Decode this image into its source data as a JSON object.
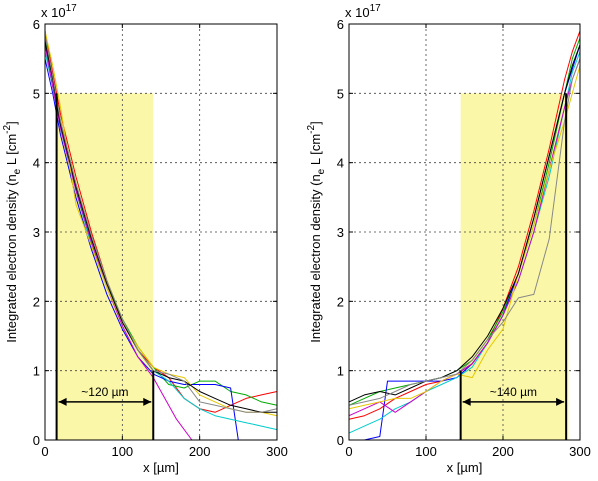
{
  "chart_data": [
    {
      "type": "line",
      "xlabel": "x [µm]",
      "ylabel": "Integrated electron density (n_e L [cm^-2]",
      "ylabel_parts": [
        "Integrated electron density (n",
        "e",
        " L [cm",
        "-2",
        "]"
      ],
      "exponent_label": "x 10",
      "exponent_power": "17",
      "xlim": [
        0,
        300
      ],
      "ylim": [
        0,
        6
      ],
      "xticks": [
        "0",
        "100",
        "200",
        "300"
      ],
      "yticks": [
        "0",
        "1",
        "2",
        "3",
        "4",
        "5",
        "6"
      ],
      "grid": true,
      "highlight": {
        "x": [
          15,
          140
        ],
        "y": [
          0,
          5
        ],
        "color": "#fbf7a8"
      },
      "markers": [
        {
          "x": 15,
          "y0": 0,
          "y1": 5
        },
        {
          "x": 140,
          "y0": 0,
          "y1": 1
        }
      ],
      "annotation": {
        "text": "~120 µm",
        "x_from": 15,
        "x_to": 140,
        "y": 0.55
      },
      "series": [
        {
          "color": "#ff0000",
          "x": [
            0,
            10,
            20,
            40,
            60,
            80,
            100,
            120,
            140,
            160,
            180,
            200,
            220,
            240,
            260,
            280,
            300
          ],
          "y": [
            5.9,
            5.3,
            4.7,
            3.8,
            3.0,
            2.3,
            1.7,
            1.3,
            1.05,
            0.9,
            0.6,
            0.45,
            0.4,
            0.5,
            0.6,
            0.65,
            0.7
          ]
        },
        {
          "color": "#00aa00",
          "x": [
            0,
            10,
            20,
            40,
            60,
            80,
            100,
            120,
            140,
            160,
            180,
            200,
            220,
            240,
            260,
            280,
            300
          ],
          "y": [
            5.8,
            5.2,
            4.6,
            3.7,
            2.9,
            2.25,
            1.75,
            1.35,
            1.05,
            0.8,
            0.75,
            0.85,
            0.85,
            0.7,
            0.65,
            0.55,
            0.5
          ]
        },
        {
          "color": "#0000ff",
          "x": [
            0,
            10,
            20,
            40,
            60,
            80,
            100,
            120,
            140,
            160,
            180,
            200,
            220,
            240,
            250,
            270,
            300
          ],
          "y": [
            5.5,
            5.0,
            4.4,
            3.5,
            2.75,
            2.1,
            1.6,
            1.2,
            0.95,
            0.85,
            0.8,
            0.8,
            0.8,
            0.75,
            0.0,
            0.0,
            0.0
          ]
        },
        {
          "color": "#00cccc",
          "x": [
            0,
            10,
            20,
            40,
            60,
            80,
            100,
            120,
            140,
            160,
            180,
            200,
            220,
            240,
            260,
            280,
            300
          ],
          "y": [
            5.6,
            5.1,
            4.5,
            3.6,
            2.8,
            2.2,
            1.7,
            1.3,
            1.0,
            0.85,
            0.6,
            0.45,
            0.35,
            0.3,
            0.25,
            0.2,
            0.15
          ]
        },
        {
          "color": "#cc00cc",
          "x": [
            0,
            10,
            20,
            40,
            60,
            80,
            100,
            120,
            140,
            150,
            170,
            190,
            210,
            230,
            250,
            270,
            300
          ],
          "y": [
            5.7,
            5.1,
            4.5,
            3.6,
            2.85,
            2.2,
            1.65,
            1.2,
            0.9,
            0.7,
            0.3,
            0.0,
            0.0,
            0.0,
            0.0,
            0.0,
            0.0
          ]
        },
        {
          "color": "#e6c800",
          "x": [
            0,
            10,
            20,
            40,
            60,
            80,
            100,
            120,
            140,
            160,
            180,
            200,
            220,
            240,
            260,
            280,
            300
          ],
          "y": [
            5.9,
            5.4,
            4.8,
            3.4,
            2.8,
            2.2,
            1.7,
            1.35,
            1.05,
            0.95,
            0.9,
            0.65,
            0.55,
            0.45,
            0.4,
            0.4,
            0.35
          ]
        },
        {
          "color": "#000000",
          "x": [
            0,
            10,
            20,
            40,
            60,
            80,
            100,
            120,
            140,
            160,
            180,
            200,
            220,
            240,
            260,
            280,
            300
          ],
          "y": [
            5.75,
            5.2,
            4.55,
            3.65,
            2.9,
            2.25,
            1.7,
            1.3,
            1.0,
            0.9,
            0.85,
            0.7,
            0.6,
            0.5,
            0.45,
            0.4,
            0.4
          ]
        },
        {
          "color": "#888888",
          "x": [
            0,
            10,
            20,
            40,
            60,
            80,
            100,
            120,
            140,
            160,
            180,
            200,
            220,
            240,
            260,
            280,
            300
          ],
          "y": [
            5.85,
            5.25,
            4.6,
            3.7,
            2.95,
            2.3,
            1.75,
            1.3,
            1.0,
            0.95,
            0.85,
            0.55,
            0.5,
            0.45,
            0.4,
            0.4,
            0.45
          ]
        }
      ]
    },
    {
      "type": "line",
      "xlabel": "x [µm]",
      "ylabel": "Integrated electron density (n_e L [cm^-2]",
      "ylabel_parts": [
        "Integrated electron density (n",
        "e",
        " L [cm",
        "-2",
        "]"
      ],
      "exponent_label": "x 10",
      "exponent_power": "17",
      "xlim": [
        0,
        300
      ],
      "ylim": [
        0,
        6
      ],
      "xticks": [
        "0",
        "100",
        "200",
        "300"
      ],
      "yticks": [
        "0",
        "1",
        "2",
        "3",
        "4",
        "5",
        "6"
      ],
      "grid": true,
      "highlight": {
        "x": [
          145,
          285
        ],
        "y": [
          0,
          5
        ],
        "color": "#fbf7a8"
      },
      "markers": [
        {
          "x": 145,
          "y0": 0,
          "y1": 1
        },
        {
          "x": 282,
          "y0": 0,
          "y1": 5
        }
      ],
      "annotation": {
        "text": "~140 µm",
        "x_from": 145,
        "x_to": 282,
        "y": 0.55
      },
      "series": [
        {
          "color": "#ff0000",
          "x": [
            0,
            20,
            40,
            60,
            80,
            100,
            120,
            140,
            160,
            180,
            200,
            220,
            240,
            260,
            280,
            290,
            300
          ],
          "y": [
            0.3,
            0.35,
            0.45,
            0.6,
            0.7,
            0.8,
            0.85,
            0.95,
            1.1,
            1.4,
            1.9,
            2.5,
            3.3,
            4.2,
            5.2,
            5.6,
            5.9
          ]
        },
        {
          "color": "#00aa00",
          "x": [
            0,
            20,
            40,
            60,
            80,
            100,
            120,
            140,
            160,
            180,
            200,
            220,
            240,
            260,
            280,
            290,
            300
          ],
          "y": [
            0.5,
            0.6,
            0.7,
            0.75,
            0.8,
            0.85,
            0.9,
            1.0,
            1.15,
            1.45,
            1.85,
            2.4,
            3.1,
            4.0,
            5.0,
            5.5,
            5.8
          ]
        },
        {
          "color": "#0000ff",
          "x": [
            0,
            20,
            40,
            50,
            60,
            80,
            100,
            120,
            140,
            160,
            180,
            200,
            220,
            240,
            260,
            280,
            300
          ],
          "y": [
            0.0,
            0.0,
            0.05,
            0.85,
            0.85,
            0.85,
            0.85,
            0.85,
            0.9,
            1.1,
            1.4,
            1.8,
            2.4,
            3.2,
            4.1,
            5.0,
            5.7
          ]
        },
        {
          "color": "#00cccc",
          "x": [
            0,
            20,
            40,
            60,
            80,
            100,
            120,
            140,
            160,
            180,
            200,
            220,
            240,
            260,
            280,
            290,
            300
          ],
          "y": [
            0.1,
            0.2,
            0.3,
            0.45,
            0.55,
            0.7,
            0.8,
            0.9,
            1.05,
            1.4,
            1.8,
            2.3,
            3.0,
            3.8,
            4.8,
            5.3,
            5.6
          ]
        },
        {
          "color": "#cc00cc",
          "x": [
            0,
            20,
            40,
            60,
            80,
            100,
            120,
            140,
            160,
            180,
            200,
            220,
            240,
            260,
            280,
            290,
            300
          ],
          "y": [
            0.35,
            0.45,
            0.55,
            0.4,
            0.55,
            0.7,
            0.85,
            0.95,
            1.1,
            1.4,
            1.8,
            2.3,
            3.0,
            3.9,
            4.8,
            5.2,
            5.5
          ]
        },
        {
          "color": "#e6c800",
          "x": [
            0,
            20,
            40,
            60,
            80,
            100,
            120,
            140,
            160,
            180,
            200,
            220,
            240,
            260,
            280,
            290,
            300
          ],
          "y": [
            0.45,
            0.5,
            0.55,
            0.6,
            0.6,
            0.7,
            0.85,
            0.95,
            0.9,
            1.3,
            1.6,
            2.4,
            3.1,
            3.9,
            4.6,
            5.0,
            5.4
          ]
        },
        {
          "color": "#000000",
          "x": [
            0,
            20,
            40,
            60,
            80,
            100,
            120,
            140,
            160,
            180,
            200,
            220,
            240,
            260,
            280,
            290,
            300
          ],
          "y": [
            0.55,
            0.65,
            0.7,
            0.65,
            0.75,
            0.85,
            0.9,
            1.0,
            1.2,
            1.5,
            1.9,
            2.4,
            3.2,
            4.1,
            5.0,
            5.4,
            5.7
          ]
        },
        {
          "color": "#888888",
          "x": [
            0,
            20,
            40,
            60,
            80,
            100,
            120,
            140,
            160,
            180,
            200,
            220,
            240,
            260,
            280,
            290,
            300
          ],
          "y": [
            0.5,
            0.55,
            0.6,
            0.7,
            0.8,
            0.85,
            0.9,
            0.95,
            1.15,
            1.45,
            1.7,
            2.05,
            2.1,
            2.9,
            4.6,
            5.2,
            5.5
          ]
        }
      ]
    }
  ]
}
